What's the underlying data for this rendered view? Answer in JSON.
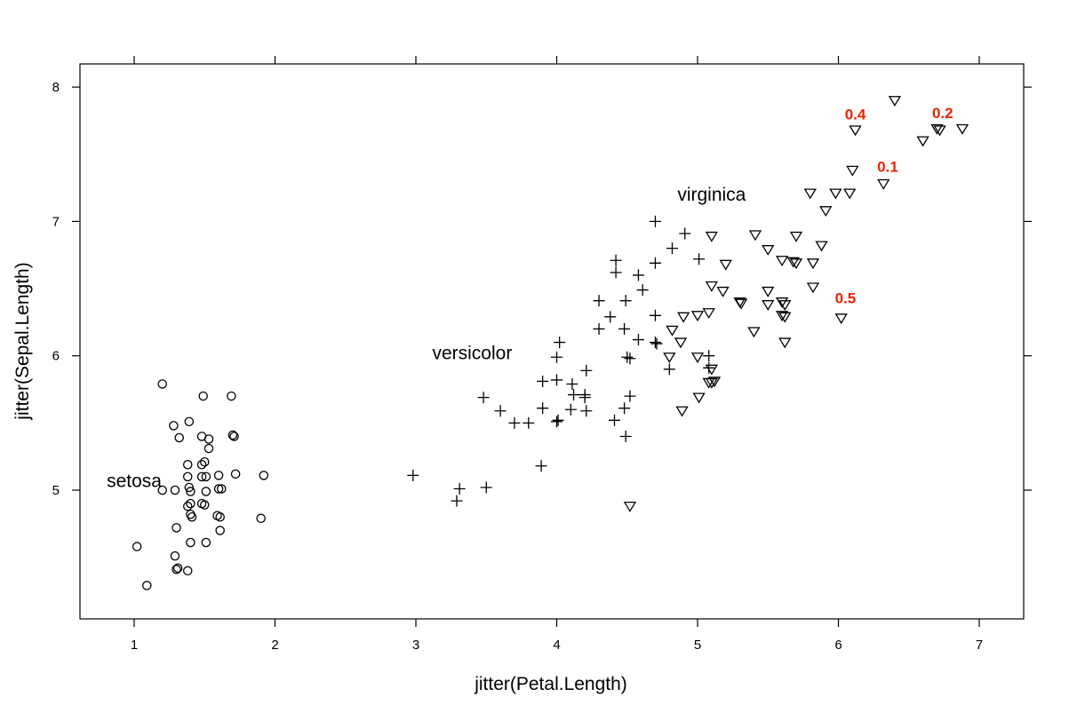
{
  "chart_data": {
    "type": "scatter",
    "xlabel": "jitter(Petal.Length)",
    "ylabel": "jitter(Sepal.Length)",
    "xlim": [
      0.6,
      7.3
    ],
    "ylim": [
      4.0,
      8.2
    ],
    "x_ticks": [
      1,
      2,
      3,
      4,
      5,
      6,
      7
    ],
    "y_ticks": [
      5,
      6,
      7,
      8
    ],
    "grid": false,
    "group_labels": [
      {
        "text": "setosa",
        "x": 1.0,
        "y": 5.07
      },
      {
        "text": "versicolor",
        "x": 3.4,
        "y": 6.02
      },
      {
        "text": "virginica",
        "x": 5.1,
        "y": 7.2
      }
    ],
    "annotations": [
      {
        "text": "0.4",
        "x": 6.12,
        "y": 7.8
      },
      {
        "text": "0.2",
        "x": 6.74,
        "y": 7.81
      },
      {
        "text": "0.1",
        "x": 6.35,
        "y": 7.41
      },
      {
        "text": "0.5",
        "x": 6.05,
        "y": 6.43
      }
    ],
    "series": [
      {
        "name": "setosa",
        "marker": "circle",
        "points": [
          [
            1.2,
            5.79
          ],
          [
            1.49,
            5.7
          ],
          [
            1.69,
            5.7
          ],
          [
            1.28,
            5.48
          ],
          [
            1.39,
            5.51
          ],
          [
            1.32,
            5.39
          ],
          [
            1.48,
            5.4
          ],
          [
            1.53,
            5.38
          ],
          [
            1.7,
            5.41
          ],
          [
            1.71,
            5.4
          ],
          [
            1.53,
            5.31
          ],
          [
            1.5,
            5.21
          ],
          [
            1.48,
            5.19
          ],
          [
            1.38,
            5.19
          ],
          [
            1.38,
            5.1
          ],
          [
            1.48,
            5.1
          ],
          [
            1.51,
            5.1
          ],
          [
            1.6,
            5.11
          ],
          [
            1.72,
            5.12
          ],
          [
            1.92,
            5.11
          ],
          [
            1.2,
            5.0
          ],
          [
            1.29,
            5.0
          ],
          [
            1.39,
            5.02
          ],
          [
            1.4,
            4.99
          ],
          [
            1.51,
            4.99
          ],
          [
            1.6,
            5.01
          ],
          [
            1.62,
            5.01
          ],
          [
            1.4,
            4.9
          ],
          [
            1.38,
            4.88
          ],
          [
            1.5,
            4.89
          ],
          [
            1.48,
            4.9
          ],
          [
            1.59,
            4.81
          ],
          [
            1.61,
            4.8
          ],
          [
            1.4,
            4.82
          ],
          [
            1.41,
            4.8
          ],
          [
            1.9,
            4.79
          ],
          [
            1.3,
            4.72
          ],
          [
            1.61,
            4.7
          ],
          [
            1.4,
            4.61
          ],
          [
            1.51,
            4.61
          ],
          [
            1.02,
            4.58
          ],
          [
            1.29,
            4.51
          ],
          [
            1.3,
            4.41
          ],
          [
            1.31,
            4.42
          ],
          [
            1.38,
            4.4
          ],
          [
            1.09,
            4.29
          ]
        ]
      },
      {
        "name": "versicolor",
        "marker": "plus",
        "points": [
          [
            4.7,
            7.0
          ],
          [
            4.91,
            6.91
          ],
          [
            4.42,
            6.71
          ],
          [
            4.42,
            6.62
          ],
          [
            4.7,
            6.69
          ],
          [
            4.82,
            6.8
          ],
          [
            5.01,
            6.72
          ],
          [
            4.58,
            6.6
          ],
          [
            4.61,
            6.49
          ],
          [
            4.3,
            6.41
          ],
          [
            4.49,
            6.41
          ],
          [
            4.38,
            6.29
          ],
          [
            4.7,
            6.3
          ],
          [
            4.48,
            6.2
          ],
          [
            4.3,
            6.2
          ],
          [
            4.02,
            6.1
          ],
          [
            4.58,
            6.12
          ],
          [
            4.7,
            6.1
          ],
          [
            4.71,
            6.09
          ],
          [
            4.0,
            5.99
          ],
          [
            4.5,
            5.99
          ],
          [
            4.52,
            5.98
          ],
          [
            5.08,
            6.0
          ],
          [
            4.21,
            5.89
          ],
          [
            4.8,
            5.9
          ],
          [
            3.9,
            5.81
          ],
          [
            4.0,
            5.82
          ],
          [
            4.11,
            5.79
          ],
          [
            5.08,
            5.91
          ],
          [
            4.12,
            5.71
          ],
          [
            4.2,
            5.71
          ],
          [
            4.2,
            5.69
          ],
          [
            4.52,
            5.7
          ],
          [
            3.48,
            5.69
          ],
          [
            3.9,
            5.61
          ],
          [
            4.1,
            5.6
          ],
          [
            4.21,
            5.59
          ],
          [
            4.48,
            5.61
          ],
          [
            3.6,
            5.59
          ],
          [
            3.7,
            5.5
          ],
          [
            3.8,
            5.5
          ],
          [
            4.0,
            5.51
          ],
          [
            4.01,
            5.52
          ],
          [
            4.41,
            5.52
          ],
          [
            4.49,
            5.4
          ],
          [
            3.89,
            5.18
          ],
          [
            2.98,
            5.11
          ],
          [
            3.31,
            5.01
          ],
          [
            3.5,
            5.02
          ],
          [
            3.29,
            4.92
          ]
        ]
      },
      {
        "name": "virginica",
        "marker": "triangle",
        "points": [
          [
            6.4,
            7.9
          ],
          [
            6.88,
            7.69
          ],
          [
            6.7,
            7.69
          ],
          [
            6.72,
            7.68
          ],
          [
            6.12,
            7.68
          ],
          [
            6.6,
            7.6
          ],
          [
            6.1,
            7.38
          ],
          [
            6.32,
            7.28
          ],
          [
            5.8,
            7.21
          ],
          [
            5.98,
            7.21
          ],
          [
            6.08,
            7.21
          ],
          [
            5.91,
            7.08
          ],
          [
            5.1,
            6.89
          ],
          [
            5.41,
            6.9
          ],
          [
            5.7,
            6.89
          ],
          [
            5.5,
            6.79
          ],
          [
            5.88,
            6.82
          ],
          [
            5.2,
            6.68
          ],
          [
            5.6,
            6.71
          ],
          [
            5.68,
            6.7
          ],
          [
            5.7,
            6.69
          ],
          [
            5.82,
            6.69
          ],
          [
            5.1,
            6.52
          ],
          [
            5.18,
            6.48
          ],
          [
            5.5,
            6.48
          ],
          [
            5.82,
            6.51
          ],
          [
            5.3,
            6.4
          ],
          [
            5.31,
            6.39
          ],
          [
            5.5,
            6.38
          ],
          [
            5.6,
            6.4
          ],
          [
            5.62,
            6.38
          ],
          [
            4.9,
            6.29
          ],
          [
            5.0,
            6.3
          ],
          [
            5.08,
            6.32
          ],
          [
            5.6,
            6.3
          ],
          [
            5.62,
            6.29
          ],
          [
            6.02,
            6.28
          ],
          [
            5.4,
            6.18
          ],
          [
            4.82,
            6.19
          ],
          [
            4.88,
            6.1
          ],
          [
            5.62,
            6.1
          ],
          [
            4.8,
            5.99
          ],
          [
            5.0,
            5.99
          ],
          [
            5.1,
            5.9
          ],
          [
            5.08,
            5.8
          ],
          [
            5.1,
            5.8
          ],
          [
            5.12,
            5.81
          ],
          [
            5.01,
            5.69
          ],
          [
            4.89,
            5.59
          ],
          [
            4.52,
            4.88
          ]
        ]
      }
    ]
  }
}
